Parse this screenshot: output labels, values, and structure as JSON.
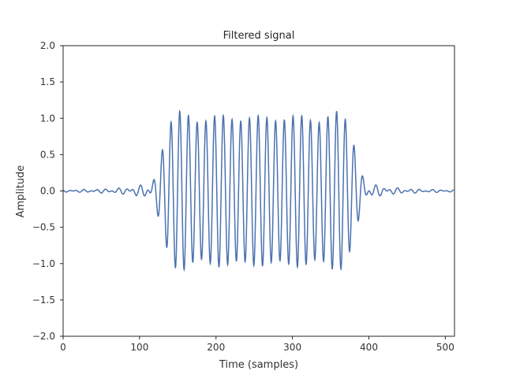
{
  "chart_data": {
    "type": "line",
    "title": "Filtered signal",
    "xlabel": "Time (samples)",
    "ylabel": "Amplitude",
    "xlim": [
      0,
      512
    ],
    "ylim": [
      -2.0,
      2.0
    ],
    "xticks": [
      0,
      100,
      200,
      300,
      400,
      500
    ],
    "yticks": [
      -2.0,
      -1.5,
      -1.0,
      -0.5,
      0.0,
      0.5,
      1.0,
      1.5,
      2.0
    ],
    "xtick_labels": [
      "0",
      "100",
      "200",
      "300",
      "400",
      "500"
    ],
    "ytick_labels": [
      "−2.0",
      "−1.5",
      "−1.0",
      "−0.5",
      "0.0",
      "0.5",
      "1.0",
      "1.5",
      "2.0"
    ],
    "grid": false,
    "line_color": "#4c72b0",
    "series": [
      {
        "burst_start": 128,
        "burst_end": 384,
        "period_samples": 11.4,
        "points": [
          [
            0,
            0.0
          ],
          [
            100,
            0.02
          ],
          [
            110,
            0.04
          ],
          [
            115,
            0.06
          ],
          [
            120,
            0.08
          ],
          [
            123,
            -0.15
          ],
          [
            130,
            1.12
          ],
          [
            134,
            -0.92
          ],
          [
            140,
            0.97
          ],
          [
            146,
            -0.98
          ],
          [
            330,
            0.99
          ],
          [
            367,
            1.06
          ],
          [
            369,
            -1.04
          ],
          [
            380,
            0.78
          ],
          [
            384,
            -0.38
          ],
          [
            392,
            0.2
          ],
          [
            398,
            -0.16
          ],
          [
            403,
            0.1
          ],
          [
            410,
            -0.06
          ],
          [
            430,
            0.02
          ],
          [
            511,
            0.0
          ]
        ]
      }
    ]
  }
}
